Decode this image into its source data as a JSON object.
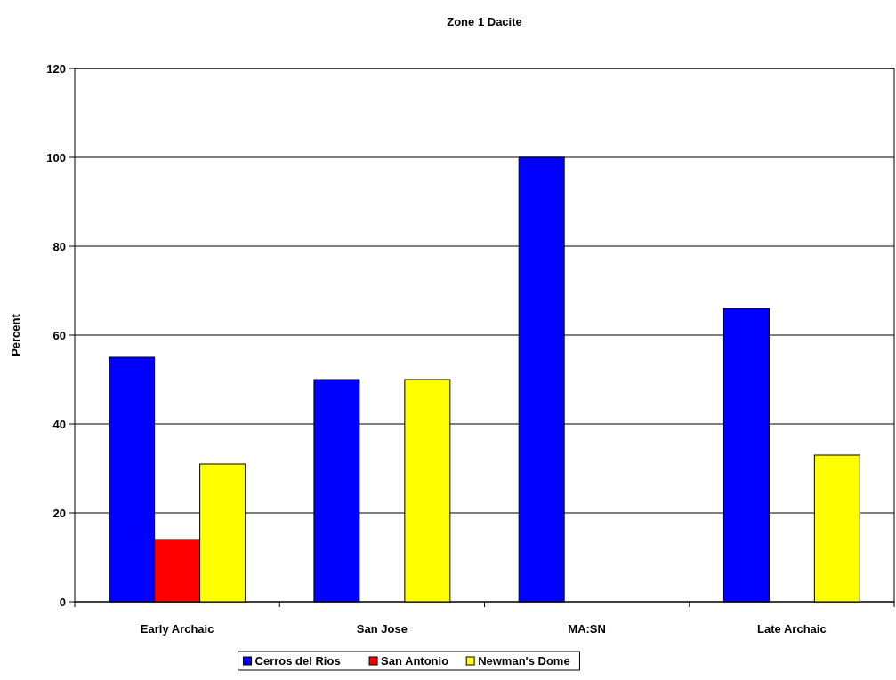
{
  "chart_data": {
    "type": "bar",
    "title": "Zone 1 Dacite",
    "ylabel": "Percent",
    "categories": [
      "Early Archaic",
      "San Jose",
      "MA:SN",
      "Late Archaic"
    ],
    "series": [
      {
        "name": "Cerros del Rios",
        "color": "#0000ff",
        "values": [
          55,
          50,
          100,
          66
        ]
      },
      {
        "name": "San Antonio",
        "color": "#ff0000",
        "values": [
          14,
          null,
          null,
          null
        ]
      },
      {
        "name": "Newman's Dome",
        "color": "#ffff00",
        "values": [
          31,
          50,
          null,
          33
        ]
      }
    ],
    "ylim": [
      0,
      120
    ],
    "yticks": [
      0,
      20,
      40,
      60,
      80,
      100,
      120
    ],
    "grid": "y",
    "legend": "bottom"
  }
}
